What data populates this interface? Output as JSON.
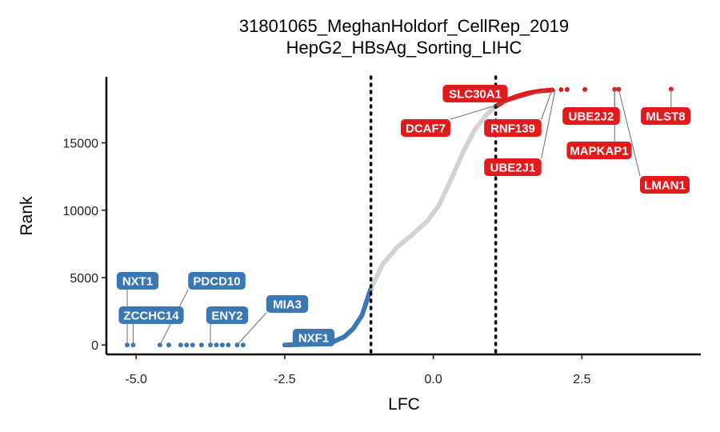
{
  "chart_data": {
    "type": "scatter",
    "title": "31801065_MeghanHoldorf_CellRep_2019",
    "subtitle": "HepG2_HBsAg_Sorting_LIHC",
    "xlabel": "LFC",
    "ylabel": "Rank",
    "xlim": [
      -5.5,
      4.5
    ],
    "ylim": [
      -700,
      19900
    ],
    "x_ticks": [
      {
        "value": -5.0,
        "label": "-5.0"
      },
      {
        "value": -2.5,
        "label": "-2.5"
      },
      {
        "value": 0.0,
        "label": "0.0"
      },
      {
        "value": 2.5,
        "label": "2.5"
      }
    ],
    "y_ticks": [
      {
        "value": 0,
        "label": "0"
      },
      {
        "value": 5000,
        "label": "5000"
      },
      {
        "value": 10000,
        "label": "10000"
      },
      {
        "value": 15000,
        "label": "15000"
      }
    ],
    "thresholds": [
      -1.05,
      1.05
    ],
    "grid": false,
    "colors": {
      "depleted": "#3a78b4",
      "neutral": "#d3d3d3",
      "enriched": "#e31a1c"
    },
    "outlier_points_depleted": [
      {
        "x": -5.15,
        "y": 0
      },
      {
        "x": -5.05,
        "y": 0
      },
      {
        "x": -4.6,
        "y": 0
      },
      {
        "x": -4.45,
        "y": 0
      },
      {
        "x": -4.25,
        "y": 0
      },
      {
        "x": -4.15,
        "y": 0
      },
      {
        "x": -4.05,
        "y": 0
      },
      {
        "x": -3.9,
        "y": 0
      },
      {
        "x": -3.75,
        "y": 0
      },
      {
        "x": -3.65,
        "y": 0
      },
      {
        "x": -3.55,
        "y": 0
      },
      {
        "x": -3.45,
        "y": 0
      },
      {
        "x": -3.3,
        "y": 0
      },
      {
        "x": -3.2,
        "y": 0
      }
    ],
    "outlier_points_enriched": [
      {
        "x": 2.15,
        "y": 18950
      },
      {
        "x": 2.25,
        "y": 18955
      },
      {
        "x": 2.55,
        "y": 18960
      },
      {
        "x": 3.05,
        "y": 18965
      },
      {
        "x": 3.12,
        "y": 18970
      },
      {
        "x": 4.0,
        "y": 18980
      }
    ],
    "labeled_genes": [
      {
        "gene": "NXT1",
        "x": -5.15,
        "y": 0,
        "group": "depleted"
      },
      {
        "gene": "ZCCHC14",
        "x": -5.05,
        "y": 0,
        "group": "depleted"
      },
      {
        "gene": "PDCD10",
        "x": -4.6,
        "y": 0,
        "group": "depleted"
      },
      {
        "gene": "ENY2",
        "x": -3.75,
        "y": 0,
        "group": "depleted"
      },
      {
        "gene": "MIA3",
        "x": -3.3,
        "y": 0,
        "group": "depleted"
      },
      {
        "gene": "NXF1",
        "x": -2.5,
        "y": 0,
        "group": "depleted"
      },
      {
        "gene": "SLC30A1",
        "x": 1.2,
        "y": 18000,
        "group": "enriched"
      },
      {
        "gene": "DCAF7",
        "x": 1.9,
        "y": 18900,
        "group": "enriched"
      },
      {
        "gene": "RNF139",
        "x": 2.0,
        "y": 18950,
        "group": "enriched"
      },
      {
        "gene": "UBE2J1",
        "x": 2.05,
        "y": 18950,
        "group": "enriched"
      },
      {
        "gene": "UBE2J2",
        "x": 3.05,
        "y": 18965,
        "group": "enriched"
      },
      {
        "gene": "MAPKAP1",
        "x": 3.05,
        "y": 18965,
        "group": "enriched"
      },
      {
        "gene": "LMAN1",
        "x": 3.12,
        "y": 18970,
        "group": "enriched"
      },
      {
        "gene": "MLST8",
        "x": 4.0,
        "y": 18980,
        "group": "enriched"
      }
    ]
  }
}
